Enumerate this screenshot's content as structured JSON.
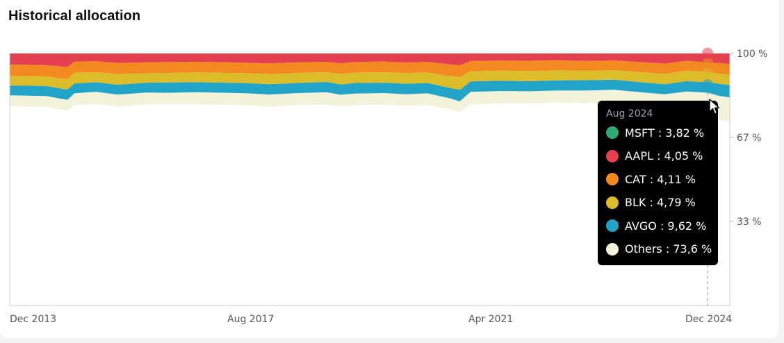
{
  "card": {
    "title": "Historical allocation"
  },
  "chart_data": {
    "type": "area",
    "stacked": true,
    "normalized": true,
    "y_ticks": [
      "100 %",
      "67 %",
      "33 %"
    ],
    "x_ticks": [
      "Dec 2013",
      "Aug 2017",
      "Apr 2021",
      "Dec 2024"
    ],
    "series": [
      {
        "name": "Others",
        "color": "#f3f3dc",
        "tooltip_value": "73,6 %"
      },
      {
        "name": "AVGO",
        "color": "#22a3c8",
        "tooltip_value": "9,62 %"
      },
      {
        "name": "BLK",
        "color": "#dcbc28",
        "tooltip_value": "4,79 %"
      },
      {
        "name": "CAT",
        "color": "#f28a1f",
        "tooltip_value": "4,11 %"
      },
      {
        "name": "AAPL",
        "color": "#e5404f",
        "tooltip_value": "4,05 %"
      },
      {
        "name": "MSFT",
        "color": "#2eaa73",
        "tooltip_value": "3,82 %"
      }
    ],
    "boundaries_percent": [
      [
        0,
        79.1,
        83.4,
        87.3,
        91.1,
        95.6,
        100
      ],
      [
        0.05,
        78.9,
        83.1,
        87.1,
        90.9,
        95.4,
        100
      ],
      [
        0.08,
        77.3,
        81.6,
        85.7,
        89.8,
        94.6,
        100
      ],
      [
        0.09,
        79.6,
        84.2,
        88.1,
        92.4,
        96.8,
        100
      ],
      [
        0.12,
        79.9,
        84.8,
        88.6,
        92.6,
        96.9,
        100
      ],
      [
        0.15,
        78.9,
        83.7,
        87.6,
        91.8,
        96.2,
        100
      ],
      [
        0.19,
        79.8,
        84.5,
        88.4,
        92.2,
        96.5,
        100
      ],
      [
        0.22,
        79.8,
        84.4,
        88.5,
        92.3,
        96.6,
        100
      ],
      [
        0.26,
        79.8,
        84.6,
        88.6,
        92.5,
        96.7,
        100
      ],
      [
        0.3,
        79.6,
        84.4,
        88.4,
        92.3,
        96.5,
        100
      ],
      [
        0.33,
        79.4,
        84.2,
        88.2,
        92.2,
        96.3,
        100
      ],
      [
        0.36,
        78.9,
        83.7,
        87.8,
        91.8,
        96.1,
        100
      ],
      [
        0.4,
        79.5,
        84.3,
        88.3,
        92.3,
        96.5,
        100
      ],
      [
        0.44,
        79.7,
        84.6,
        88.7,
        92.6,
        96.7,
        100
      ],
      [
        0.46,
        79.0,
        83.6,
        87.7,
        91.9,
        96.1,
        100
      ],
      [
        0.48,
        79.5,
        84.1,
        88.3,
        92.4,
        96.6,
        100
      ],
      [
        0.52,
        79.7,
        84.3,
        88.4,
        92.6,
        96.8,
        100
      ],
      [
        0.55,
        79.2,
        83.8,
        88.0,
        92.2,
        96.4,
        100
      ],
      [
        0.58,
        79.6,
        84.2,
        88.3,
        92.5,
        96.7,
        100
      ],
      [
        0.61,
        77.9,
        82.3,
        86.4,
        91.1,
        95.7,
        100
      ],
      [
        0.625,
        76.8,
        81.0,
        85.6,
        90.6,
        95.3,
        100
      ],
      [
        0.64,
        79.8,
        84.8,
        88.9,
        92.9,
        97.0,
        100
      ],
      [
        0.68,
        80.2,
        85.1,
        89.2,
        93.2,
        97.2,
        100
      ],
      [
        0.72,
        80.2,
        85.0,
        89.0,
        93.0,
        97.1,
        100
      ],
      [
        0.76,
        80.5,
        85.3,
        89.3,
        93.3,
        97.3,
        100
      ],
      [
        0.8,
        80.3,
        85.3,
        89.4,
        93.2,
        97.0,
        100
      ],
      [
        0.84,
        80.8,
        85.6,
        89.6,
        93.4,
        97.2,
        100
      ],
      [
        0.88,
        79.5,
        84.5,
        88.5,
        92.5,
        96.5,
        100
      ],
      [
        0.91,
        79.1,
        83.8,
        87.8,
        91.9,
        96.0,
        100
      ],
      [
        0.94,
        80.3,
        84.9,
        89.0,
        93.2,
        97.1,
        100
      ],
      [
        0.97,
        79.8,
        84.4,
        88.5,
        92.6,
        96.4,
        100
      ],
      [
        0.985,
        73.6,
        83.2,
        88.0,
        92.1,
        96.2,
        100
      ],
      [
        1.0,
        73.0,
        82.6,
        87.4,
        91.5,
        95.8,
        100
      ]
    ],
    "tooltip": {
      "date": "Aug 2024",
      "order": [
        "MSFT",
        "AAPL",
        "CAT",
        "BLK",
        "AVGO",
        "Others"
      ]
    }
  }
}
